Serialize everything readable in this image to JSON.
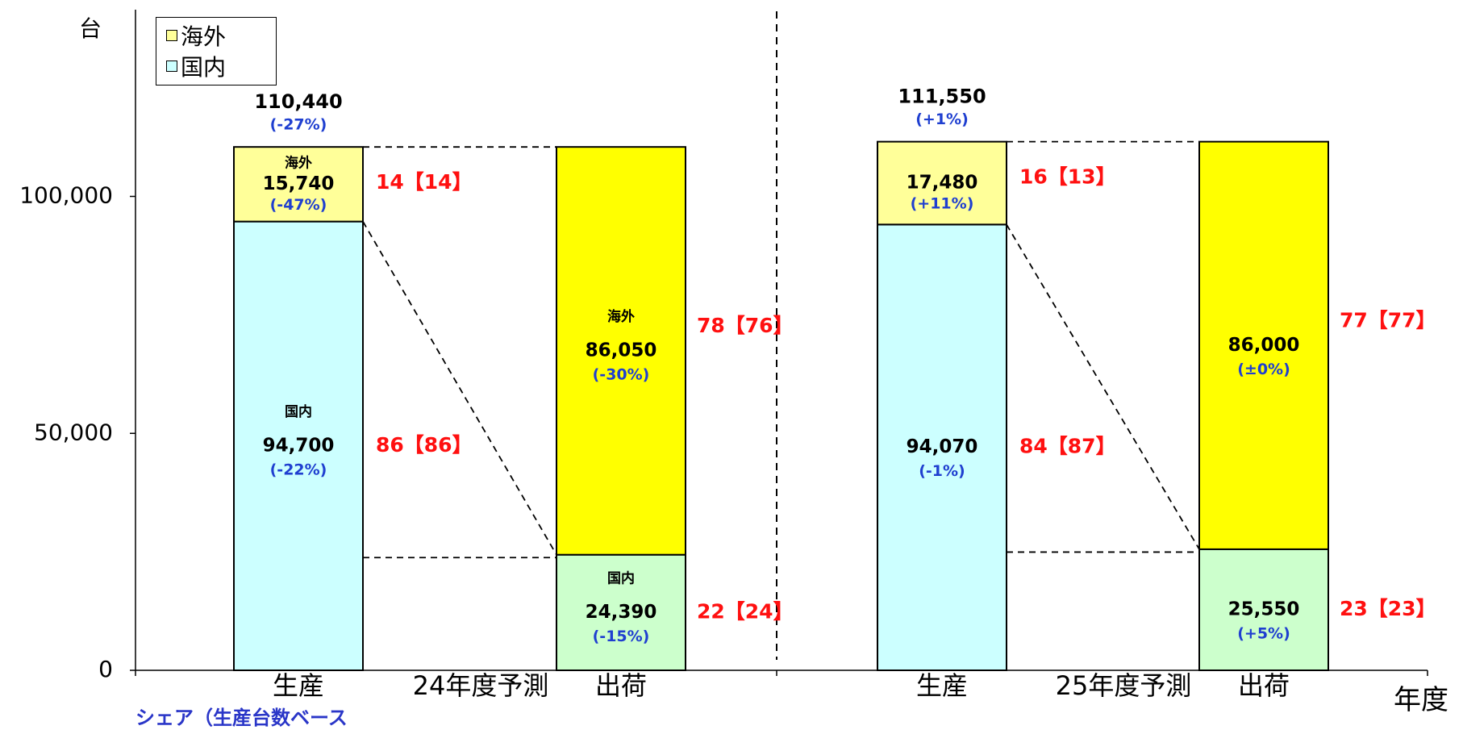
{
  "chart_data": {
    "type": "bar",
    "stacked": true,
    "y_unit": "台",
    "x_unit": "年度",
    "ylim": [
      0,
      140000
    ],
    "y_ticks": [
      0,
      50000,
      100000
    ],
    "y_tick_labels": [
      "0",
      "50,000",
      "100,000"
    ],
    "legend": {
      "entries": [
        {
          "label": "海外",
          "color": "#ffff99"
        },
        {
          "label": "国内",
          "color": "#ccffff"
        }
      ],
      "placement": "top-left"
    },
    "groups": [
      {
        "label": "24年度予測",
        "bars": [
          {
            "category": "生産",
            "total_label": "110,440",
            "total_change": "(-27%)",
            "segments": [
              {
                "series": "国内",
                "value": 94700,
                "color": "#ccffff",
                "name_label": "国内",
                "value_label": "94,700",
                "change": "(-22%)",
                "share_label": "86【86】"
              },
              {
                "series": "海外",
                "value": 15740,
                "color": "#ffff99",
                "name_label": "海外",
                "value_label": "15,740",
                "change": "(-47%)",
                "share_label": "14【14】"
              }
            ]
          },
          {
            "category": "出荷",
            "segments": [
              {
                "series": "国内",
                "value": 24390,
                "color": "#ccffcc",
                "name_label": "国内",
                "value_label": "24,390",
                "change": "(-15%)",
                "share_label": "22【24】"
              },
              {
                "series": "海外",
                "value": 86050,
                "color": "#ffff00",
                "name_label": "海外",
                "value_label": "86,050",
                "change": "(-30%)",
                "share_label": "78【76】"
              }
            ]
          }
        ]
      },
      {
        "label": "25年度予測",
        "bars": [
          {
            "category": "生産",
            "total_label": "111,550",
            "total_change": "(+1%)",
            "segments": [
              {
                "series": "国内",
                "value": 94070,
                "color": "#ccffff",
                "name_label": "",
                "value_label": "94,070",
                "change": "(-1%)",
                "share_label": "84【87】"
              },
              {
                "series": "海外",
                "value": 17480,
                "color": "#ffff99",
                "name_label": "",
                "value_label": "17,480",
                "change": "(+11%)",
                "share_label": "16【13】"
              }
            ]
          },
          {
            "category": "出荷",
            "segments": [
              {
                "series": "国内",
                "value": 25550,
                "color": "#ccffcc",
                "name_label": "",
                "value_label": "25,550",
                "change": "(+5%)",
                "share_label": "23【23】"
              },
              {
                "series": "海外",
                "value": 86000,
                "color": "#ffff00",
                "name_label": "",
                "value_label": "86,000",
                "change": "(±0%)",
                "share_label": "77【77】"
              }
            ]
          }
        ]
      }
    ]
  },
  "colors": {
    "value_text": "#000000",
    "change_text": "#1f3fd0",
    "share_text": "#ff1010"
  },
  "footer_cutoff": "シェア（生産台数ベース"
}
